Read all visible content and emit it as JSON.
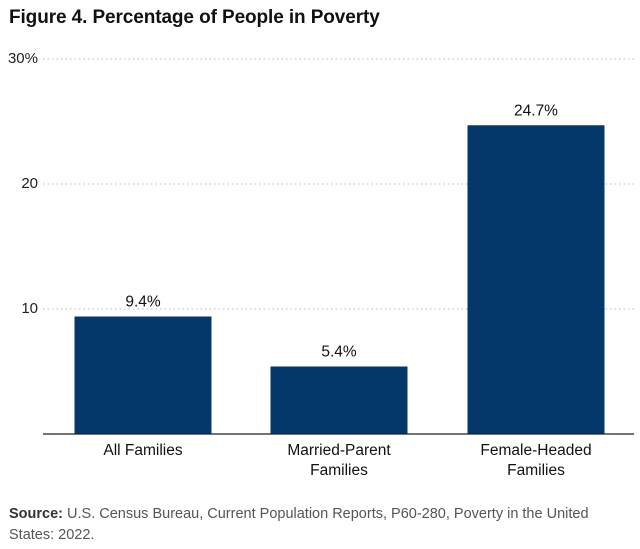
{
  "chart_data": {
    "type": "bar",
    "title": "Figure 4. Percentage of People in Poverty",
    "categories": [
      [
        "All Families"
      ],
      [
        "Married-Parent",
        "Families"
      ],
      [
        "Female-Headed",
        "Families"
      ]
    ],
    "values": [
      9.4,
      5.4,
      24.7
    ],
    "value_labels": [
      "9.4%",
      "5.4%",
      "24.7%"
    ],
    "y_ticks": [
      10,
      20,
      30
    ],
    "y_tick_labels": [
      "10",
      "20",
      "30%"
    ],
    "ylim": [
      0,
      30
    ],
    "xlabel": "",
    "ylabel": "",
    "grid": true,
    "bar_color": "#04386b"
  },
  "source": {
    "label": "Source:",
    "text": "U.S. Census Bureau, Current Population Reports, P60-280, Poverty in the United States: 2022."
  }
}
